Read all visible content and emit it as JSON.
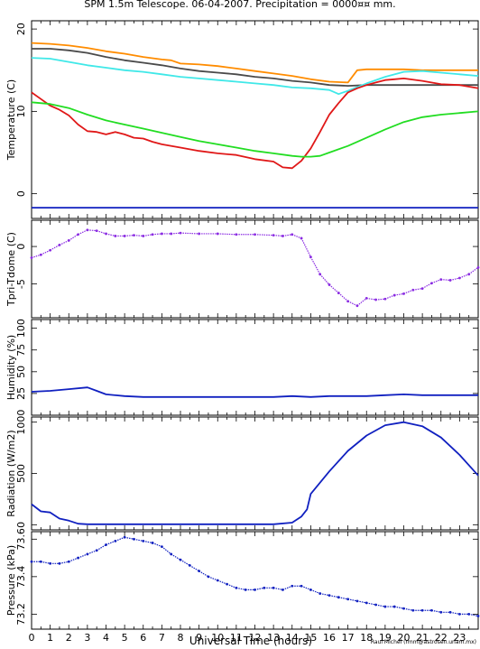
{
  "title": "SPM 1.5m Telescope. 06-04-2007. Precipitation = 0000¤¤ mm.",
  "xlabel": "Universal Time (hours)",
  "credit": "Raul Michel (rmm@astrosen.unam.mx)",
  "colors": {
    "orange": "#ff8c00",
    "darkgray": "#4a4a4a",
    "cyan": "#40e8e8",
    "red": "#e01818",
    "green": "#22dd22",
    "blue": "#1020c0",
    "purple": "#8a2be2"
  },
  "chart_data": [
    {
      "type": "line",
      "ylabel": "Temperature (C)",
      "xlim": [
        0,
        24
      ],
      "ylim": [
        -3,
        21
      ],
      "x_ticks": [
        0,
        1,
        2,
        3,
        4,
        5,
        6,
        7,
        8,
        9,
        10,
        11,
        12,
        13,
        14,
        15,
        16,
        17,
        18,
        19,
        20,
        21,
        22,
        23
      ],
      "y_ticks": [
        0,
        10,
        20
      ],
      "series": [
        {
          "color": "orange",
          "x": [
            0,
            1,
            2,
            3,
            4,
            5,
            6,
            7,
            7.5,
            8,
            9,
            10,
            11,
            12,
            13,
            14,
            15,
            16,
            17,
            17.5,
            18,
            19,
            20,
            21,
            22,
            23,
            24
          ],
          "y": [
            18.3,
            18.2,
            18.0,
            17.7,
            17.3,
            17.0,
            16.6,
            16.3,
            16.2,
            15.8,
            15.7,
            15.5,
            15.2,
            14.9,
            14.6,
            14.3,
            13.9,
            13.6,
            13.5,
            15.0,
            15.1,
            15.1,
            15.1,
            15.0,
            15.0,
            15.0,
            15.0
          ]
        },
        {
          "color": "darkgray",
          "x": [
            0,
            1,
            2,
            3,
            4,
            5,
            6,
            7,
            8,
            9,
            10,
            11,
            12,
            13,
            14,
            15,
            16,
            17,
            18,
            19,
            20,
            21,
            22,
            23,
            24
          ],
          "y": [
            17.6,
            17.6,
            17.4,
            17.1,
            16.6,
            16.2,
            15.9,
            15.6,
            15.2,
            14.9,
            14.7,
            14.5,
            14.2,
            14.0,
            13.7,
            13.5,
            13.2,
            13.1,
            13.2,
            13.2,
            13.2,
            13.2,
            13.2,
            13.2,
            13.2
          ]
        },
        {
          "color": "cyan",
          "x": [
            0,
            1,
            2,
            3,
            4,
            5,
            6,
            7,
            8,
            9,
            10,
            11,
            12,
            13,
            14,
            15,
            16,
            16.5,
            17,
            18,
            19,
            20,
            21,
            22,
            23,
            24
          ],
          "y": [
            16.5,
            16.4,
            16.0,
            15.6,
            15.3,
            15.0,
            14.8,
            14.5,
            14.2,
            14.0,
            13.8,
            13.6,
            13.4,
            13.2,
            12.9,
            12.8,
            12.6,
            12.1,
            12.5,
            13.4,
            14.2,
            14.8,
            14.9,
            14.7,
            14.5,
            14.3
          ]
        },
        {
          "color": "red",
          "x": [
            0,
            0.5,
            1,
            1.5,
            2,
            2.5,
            3,
            3.5,
            4,
            4.5,
            5,
            5.5,
            6,
            6.5,
            7,
            8,
            9,
            10,
            11,
            12,
            13,
            13.5,
            14,
            14.5,
            15,
            15.5,
            16,
            16.5,
            17,
            17.5,
            18,
            18.5,
            19,
            19.5,
            20,
            21,
            22,
            23,
            24
          ],
          "y": [
            12.3,
            11.5,
            10.7,
            10.2,
            9.5,
            8.4,
            7.6,
            7.5,
            7.2,
            7.5,
            7.2,
            6.8,
            6.7,
            6.3,
            6.0,
            5.6,
            5.2,
            4.9,
            4.7,
            4.2,
            3.9,
            3.2,
            3.1,
            4.0,
            5.5,
            7.5,
            9.6,
            11.0,
            12.3,
            12.8,
            13.2,
            13.5,
            13.8,
            13.9,
            14.0,
            13.7,
            13.3,
            13.2,
            12.8
          ]
        },
        {
          "color": "green",
          "x": [
            0,
            1,
            2,
            3,
            4,
            5,
            6,
            7,
            8,
            9,
            10,
            11,
            12,
            13,
            14,
            14.5,
            15,
            15.5,
            16,
            17,
            18,
            19,
            20,
            21,
            22,
            23,
            24
          ],
          "y": [
            11.1,
            10.9,
            10.4,
            9.6,
            8.9,
            8.4,
            7.9,
            7.4,
            6.9,
            6.4,
            6.0,
            5.6,
            5.2,
            4.9,
            4.6,
            4.5,
            4.5,
            4.6,
            5.0,
            5.8,
            6.8,
            7.8,
            8.7,
            9.3,
            9.6,
            9.8,
            10.0
          ]
        },
        {
          "color": "blue",
          "x": [
            0,
            24
          ],
          "y": [
            -1.7,
            -1.7
          ]
        }
      ]
    },
    {
      "type": "scatter",
      "ylabel": "Tpri-Tdome (C)",
      "xlim": [
        0,
        24
      ],
      "ylim": [
        -9.5,
        3.5
      ],
      "x_ticks": [
        0,
        1,
        2,
        3,
        4,
        5,
        6,
        7,
        8,
        9,
        10,
        11,
        12,
        13,
        14,
        15,
        16,
        17,
        18,
        19,
        20,
        21,
        22,
        23
      ],
      "y_ticks": [
        -5,
        0
      ],
      "series": [
        {
          "color": "purple",
          "x": [
            0,
            0.5,
            1,
            1.5,
            2,
            2.5,
            3,
            3.5,
            4,
            4.5,
            5,
            5.5,
            6,
            6.5,
            7,
            7.5,
            8,
            9,
            10,
            11,
            12,
            13,
            13.5,
            14,
            14.5,
            15,
            15.5,
            16,
            16.5,
            17,
            17.5,
            18,
            18.5,
            19,
            19.5,
            20,
            20.5,
            21,
            21.5,
            22,
            22.5,
            23,
            23.5,
            24
          ],
          "y": [
            -1.5,
            -1.1,
            -0.5,
            0.2,
            0.8,
            1.6,
            2.2,
            2.1,
            1.7,
            1.4,
            1.4,
            1.5,
            1.4,
            1.6,
            1.7,
            1.7,
            1.8,
            1.7,
            1.7,
            1.6,
            1.6,
            1.5,
            1.4,
            1.6,
            1.1,
            -1.4,
            -3.7,
            -5.1,
            -6.2,
            -7.3,
            -7.9,
            -6.9,
            -7.1,
            -7.0,
            -6.5,
            -6.3,
            -5.8,
            -5.6,
            -4.9,
            -4.4,
            -4.5,
            -4.2,
            -3.7,
            -2.8
          ]
        }
      ]
    },
    {
      "type": "line",
      "ylabel": "Humidity (%)",
      "xlim": [
        0,
        24
      ],
      "ylim": [
        0,
        110
      ],
      "x_ticks": [
        0,
        1,
        2,
        3,
        4,
        5,
        6,
        7,
        8,
        9,
        10,
        11,
        12,
        13,
        14,
        15,
        16,
        17,
        18,
        19,
        20,
        21,
        22,
        23
      ],
      "y_ticks": [
        25,
        50,
        75,
        100
      ],
      "series": [
        {
          "color": "blue",
          "x": [
            0,
            1,
            2,
            3,
            3.5,
            4,
            5,
            6,
            7,
            8,
            9,
            10,
            11,
            12,
            13,
            14,
            15,
            16,
            17,
            18,
            19,
            20,
            21,
            22,
            23,
            24
          ],
          "y": [
            27,
            28,
            30,
            32,
            28,
            24,
            22,
            21,
            21,
            21,
            21,
            21,
            21,
            21,
            21,
            22,
            21,
            22,
            22,
            22,
            23,
            24,
            23,
            23,
            23,
            23
          ]
        }
      ]
    },
    {
      "type": "line",
      "ylabel": "Radiation (W/m2)",
      "xlim": [
        0,
        24
      ],
      "ylim": [
        -50,
        1050
      ],
      "x_ticks": [
        0,
        1,
        2,
        3,
        4,
        5,
        6,
        7,
        8,
        9,
        10,
        11,
        12,
        13,
        14,
        15,
        16,
        17,
        18,
        19,
        20,
        21,
        22,
        23
      ],
      "y_ticks": [
        0,
        500,
        1000
      ],
      "series": [
        {
          "color": "blue",
          "x": [
            0,
            0.5,
            1,
            1.5,
            2,
            2.5,
            3,
            4,
            5,
            6,
            7,
            8,
            9,
            10,
            11,
            12,
            13,
            14,
            14.5,
            14.8,
            15,
            16,
            17,
            18,
            19,
            20,
            21,
            22,
            23,
            24
          ],
          "y": [
            200,
            130,
            120,
            60,
            40,
            10,
            5,
            5,
            5,
            5,
            5,
            5,
            5,
            5,
            5,
            5,
            5,
            20,
            80,
            150,
            300,
            520,
            720,
            870,
            970,
            1000,
            960,
            850,
            680,
            480
          ]
        }
      ]
    },
    {
      "type": "scatter",
      "ylabel": "Pressure (kPa)",
      "xlim": [
        0,
        24
      ],
      "ylim": [
        73.12,
        73.64
      ],
      "x_ticks": [
        0,
        1,
        2,
        3,
        4,
        5,
        6,
        7,
        8,
        9,
        10,
        11,
        12,
        13,
        14,
        15,
        16,
        17,
        18,
        19,
        20,
        21,
        22,
        23
      ],
      "y_ticks": [
        73.2,
        73.4,
        73.6
      ],
      "series": [
        {
          "color": "blue",
          "x": [
            0,
            0.5,
            1,
            1.5,
            2,
            2.5,
            3,
            3.5,
            4,
            4.5,
            5,
            5.5,
            6,
            6.5,
            7,
            7.5,
            8,
            8.5,
            9,
            9.5,
            10,
            10.5,
            11,
            11.5,
            12,
            12.5,
            13,
            13.5,
            14,
            14.5,
            15,
            15.5,
            16,
            16.5,
            17,
            17.5,
            18,
            18.5,
            19,
            19.5,
            20,
            20.5,
            21,
            21.5,
            22,
            22.5,
            23,
            23.5,
            24
          ],
          "y": [
            73.48,
            73.48,
            73.47,
            73.47,
            73.48,
            73.5,
            73.52,
            73.54,
            73.57,
            73.59,
            73.61,
            73.6,
            73.59,
            73.58,
            73.56,
            73.52,
            73.49,
            73.46,
            73.43,
            73.4,
            73.38,
            73.36,
            73.34,
            73.33,
            73.33,
            73.34,
            73.34,
            73.33,
            73.35,
            73.35,
            73.33,
            73.31,
            73.3,
            73.29,
            73.28,
            73.27,
            73.26,
            73.25,
            73.24,
            73.24,
            73.23,
            73.22,
            73.22,
            73.22,
            73.21,
            73.21,
            73.2,
            73.2,
            73.19
          ]
        }
      ]
    }
  ]
}
